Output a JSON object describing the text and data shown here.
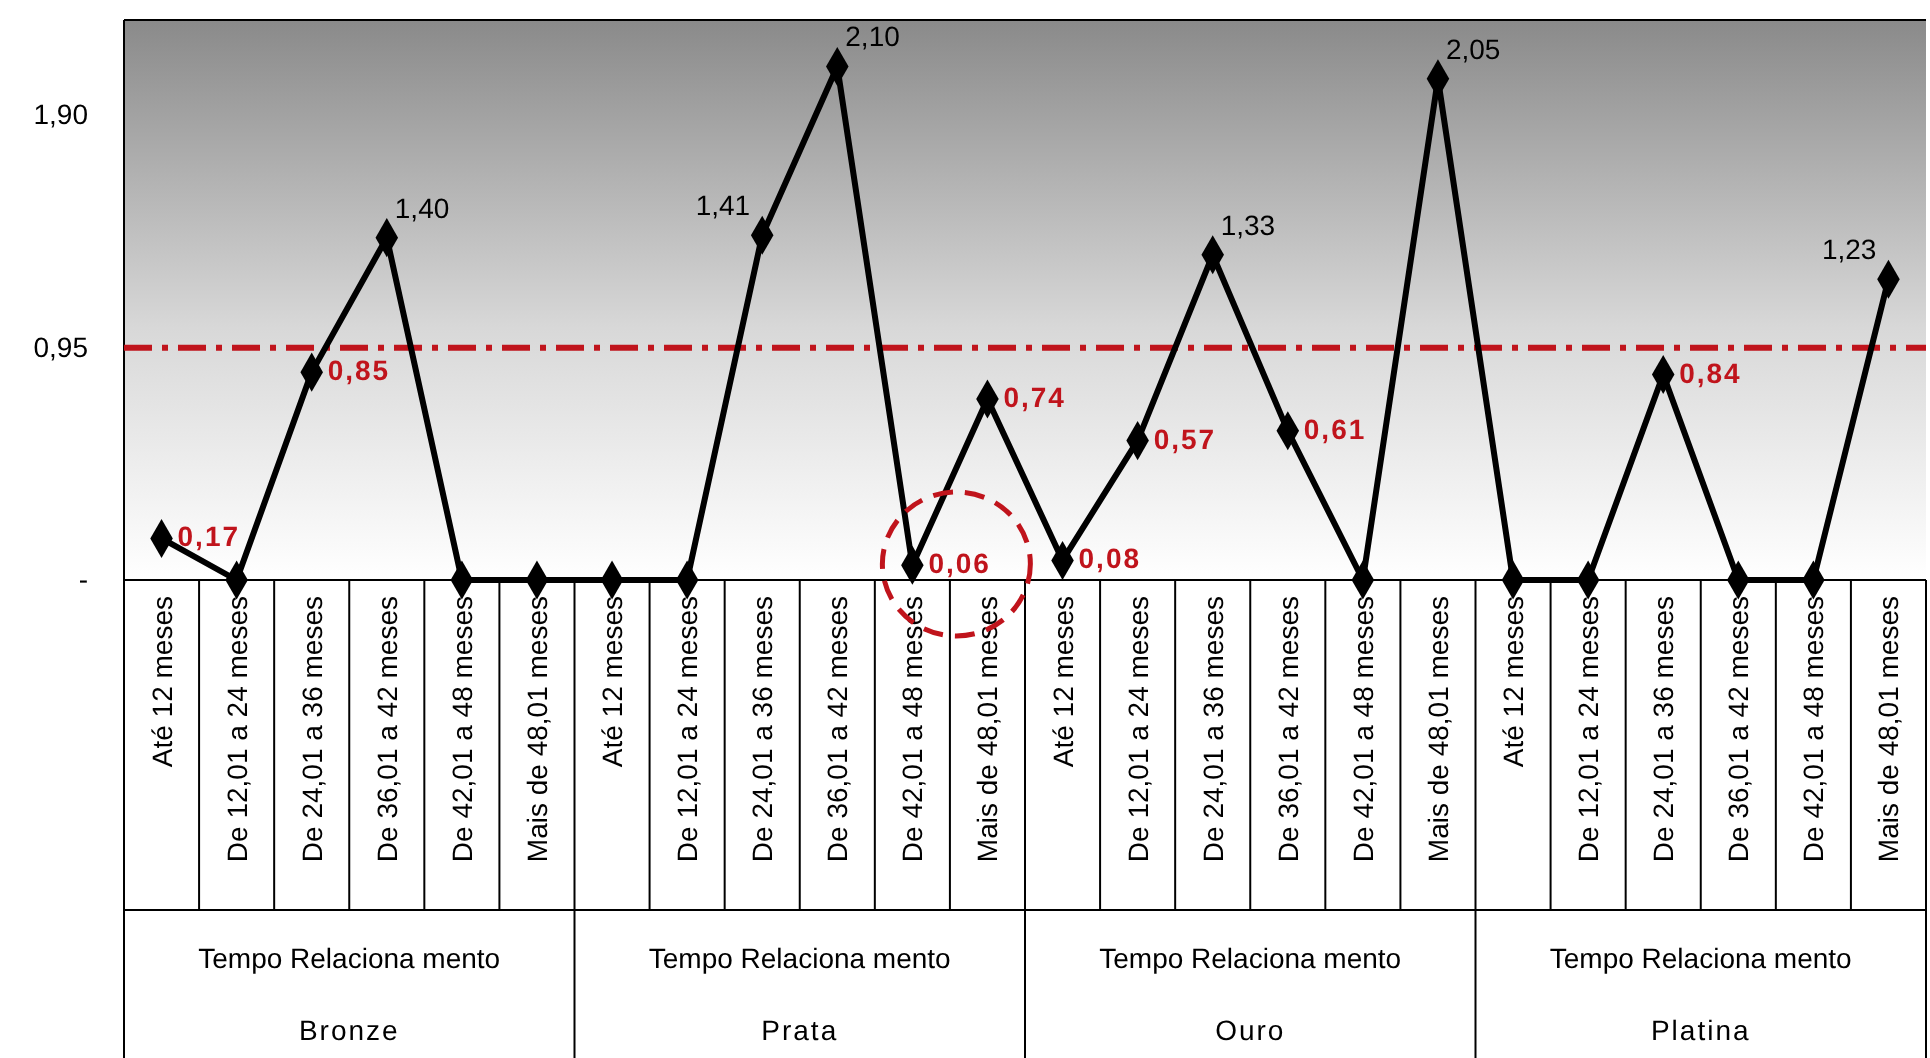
{
  "chart_data": {
    "type": "line",
    "categories": [
      "Até 12 meses",
      "De 12,01 a 24 meses",
      "De 24,01 a 36 meses",
      "De 36,01 a 42 meses",
      "De 42,01 a 48 meses",
      "Mais de 48,01 meses",
      "Até 12 meses",
      "De 12,01 a 24 meses",
      "De 24,01 a 36 meses",
      "De 36,01 a 42 meses",
      "De 42,01 a 48 meses",
      "Mais de 48,01 meses",
      "Até 12 meses",
      "De 12,01 a 24 meses",
      "De 24,01 a 36 meses",
      "De 36,01 a 42 meses",
      "De 42,01 a 48 meses",
      "Mais de 48,01 meses",
      "Até 12 meses",
      "De 12,01 a 24 meses",
      "De 24,01 a 36 meses",
      "De 36,01 a 42 meses",
      "De 42,01 a 48 meses",
      "Mais de 48,01 meses"
    ],
    "series": [
      {
        "color": "#000000",
        "values": [
          0.17,
          0,
          0.85,
          1.4,
          0,
          0,
          0,
          0,
          1.41,
          2.1,
          0.06,
          0.74,
          0.08,
          0.57,
          1.33,
          0.61,
          0,
          2.05,
          0,
          0,
          0.84,
          0,
          0,
          1.23
        ],
        "value_labels": [
          "0,17",
          null,
          "0,85",
          "1,40",
          null,
          null,
          null,
          null,
          "1,41",
          "2,10",
          "0,06",
          "0,74",
          "0,08",
          "0,57",
          "1,33",
          "0,61",
          null,
          "2,05",
          null,
          null,
          "0,84",
          null,
          null,
          "1,23"
        ]
      }
    ],
    "annotations": [
      "Tempo Relaciona mento",
      "Bronze",
      "Tempo Relaciona mento",
      "Prata",
      "Tempo Relaciona mento",
      "Ouro",
      "Tempo Relaciona mento",
      "Platina"
    ],
    "ylim": [
      0,
      2.29
    ],
    "yticks": [
      {
        "value": 0,
        "label": "-"
      },
      {
        "value": 0.95,
        "label": "0,95"
      },
      {
        "value": 1.9,
        "label": "1,90"
      }
    ],
    "ref_lines": [
      {
        "axis": "y",
        "value": 0.95,
        "color": "#c0141c",
        "line_style": "dashdot"
      }
    ],
    "marker": "diamond",
    "grid": false
  }
}
